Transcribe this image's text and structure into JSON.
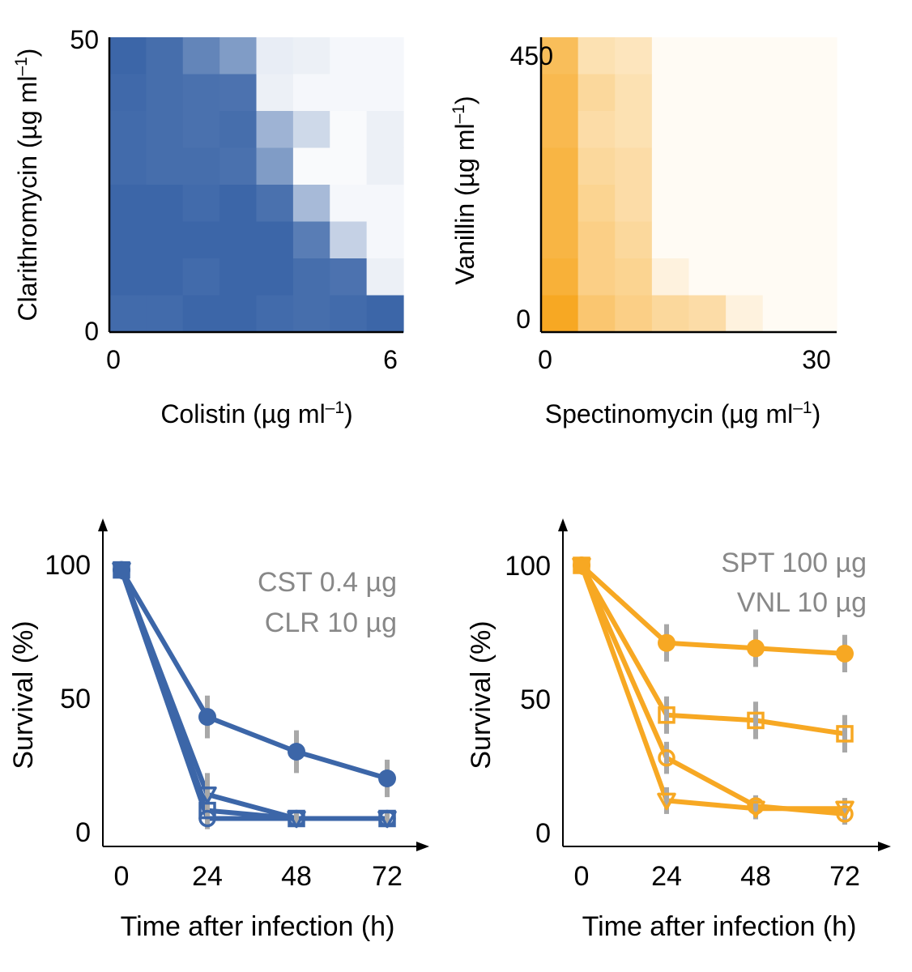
{
  "chart_data": [
    {
      "type": "heatmap",
      "id": "colistin-clarithromycin",
      "xlabel": "Colistin (µg ml",
      "ylabel": "Clarithromycin (µg ml",
      "unit_sup": "–1",
      "xlim": [
        0,
        6
      ],
      "ylim": [
        0,
        50
      ],
      "xticks": [
        "0",
        "6"
      ],
      "yticks": [
        "0",
        "50"
      ],
      "color": "#3c66a8",
      "values": [
        [
          1.0,
          0.95,
          0.8,
          0.65,
          0.12,
          0.1,
          0.05,
          0.05
        ],
        [
          0.98,
          0.95,
          0.93,
          0.92,
          0.1,
          0.05,
          0.05,
          0.05
        ],
        [
          0.97,
          0.95,
          0.93,
          0.95,
          0.5,
          0.25,
          0.03,
          0.1
        ],
        [
          0.97,
          0.95,
          0.95,
          0.93,
          0.65,
          0.03,
          0.03,
          0.1
        ],
        [
          1.0,
          1.0,
          0.97,
          1.0,
          0.93,
          0.45,
          0.05,
          0.05
        ],
        [
          1.0,
          1.0,
          1.0,
          1.0,
          1.0,
          0.85,
          0.3,
          0.05
        ],
        [
          1.0,
          1.0,
          0.97,
          1.0,
          1.0,
          0.95,
          0.92,
          0.1
        ],
        [
          0.97,
          0.97,
          1.0,
          1.0,
          0.97,
          0.95,
          0.97,
          1.0
        ]
      ]
    },
    {
      "type": "heatmap",
      "id": "spectinomycin-vanillin",
      "xlabel": "Spectinomycin (µg ml",
      "ylabel": "Vanillin (µg ml",
      "unit_sup": "–1",
      "xlim": [
        0,
        30
      ],
      "ylim": [
        0,
        450
      ],
      "xticks": [
        "0",
        "30"
      ],
      "yticks": [
        "0",
        "450"
      ],
      "color": "#f7a823",
      "values": [
        [
          0.75,
          0.35,
          0.3,
          0.05,
          0.05,
          0.05,
          0.05,
          0.05
        ],
        [
          0.8,
          0.45,
          0.35,
          0.05,
          0.05,
          0.05,
          0.05,
          0.05
        ],
        [
          0.8,
          0.4,
          0.35,
          0.05,
          0.05,
          0.05,
          0.05,
          0.05
        ],
        [
          0.85,
          0.45,
          0.4,
          0.05,
          0.05,
          0.05,
          0.05,
          0.05
        ],
        [
          0.85,
          0.5,
          0.4,
          0.05,
          0.05,
          0.05,
          0.05,
          0.05
        ],
        [
          0.85,
          0.55,
          0.45,
          0.05,
          0.05,
          0.05,
          0.05,
          0.05
        ],
        [
          0.9,
          0.55,
          0.5,
          0.15,
          0.05,
          0.05,
          0.05,
          0.05
        ],
        [
          1.0,
          0.65,
          0.55,
          0.45,
          0.4,
          0.15,
          0.05,
          0.05
        ]
      ]
    },
    {
      "type": "line",
      "id": "survival-cst-clr",
      "xlabel": "Time after infection (h)",
      "ylabel": "Survival (%)",
      "x": [
        0,
        24,
        48,
        72
      ],
      "xticks": [
        "0",
        "24",
        "48",
        "72"
      ],
      "yticks": [
        {
          "value": 0,
          "label": "0"
        },
        {
          "value": 50,
          "label": "50"
        },
        {
          "value": 100,
          "label": "100"
        }
      ],
      "annotation": [
        "CST 0.4 µg",
        "CLR 10 µg"
      ],
      "color": "#3c66a8",
      "series": [
        {
          "name": "filled-circle",
          "marker": "circle-filled",
          "values": [
            98,
            43,
            30,
            20
          ],
          "errors": [
            3,
            8,
            8,
            7
          ]
        },
        {
          "name": "open-triangle",
          "marker": "triangle-open",
          "values": [
            98,
            14,
            5,
            5
          ],
          "errors": [
            3,
            8,
            3,
            3
          ]
        },
        {
          "name": "open-square",
          "marker": "square-open",
          "values": [
            98,
            8,
            5,
            5
          ],
          "errors": [
            3,
            5,
            3,
            3
          ]
        },
        {
          "name": "open-circle",
          "marker": "circle-open",
          "values": [
            98,
            5,
            5,
            5
          ],
          "errors": [
            3,
            4,
            3,
            3
          ]
        }
      ]
    },
    {
      "type": "line",
      "id": "survival-spt-vnl",
      "xlabel": "Time after infection (h)",
      "ylabel": "Survival (%)",
      "x": [
        0,
        24,
        48,
        72
      ],
      "xticks": [
        "0",
        "24",
        "48",
        "72"
      ],
      "yticks": [
        {
          "value": 0,
          "label": "0"
        },
        {
          "value": 50,
          "label": "50"
        },
        {
          "value": 100,
          "label": "100"
        }
      ],
      "annotation": [
        "SPT 100 µg",
        "VNL 10 µg"
      ],
      "color": "#f7a823",
      "series": [
        {
          "name": "filled-circle",
          "marker": "circle-filled",
          "values": [
            100,
            71,
            69,
            67
          ],
          "errors": [
            2,
            7,
            7,
            7
          ]
        },
        {
          "name": "open-square",
          "marker": "square-open",
          "values": [
            100,
            44,
            42,
            37
          ],
          "errors": [
            2,
            7,
            7,
            7
          ]
        },
        {
          "name": "open-circle",
          "marker": "circle-open",
          "values": [
            100,
            28,
            10,
            7
          ],
          "errors": [
            2,
            6,
            4,
            4
          ]
        },
        {
          "name": "open-triangle",
          "marker": "triangle-open",
          "values": [
            100,
            12,
            9,
            9
          ],
          "errors": [
            2,
            5,
            4,
            4
          ]
        }
      ]
    }
  ]
}
